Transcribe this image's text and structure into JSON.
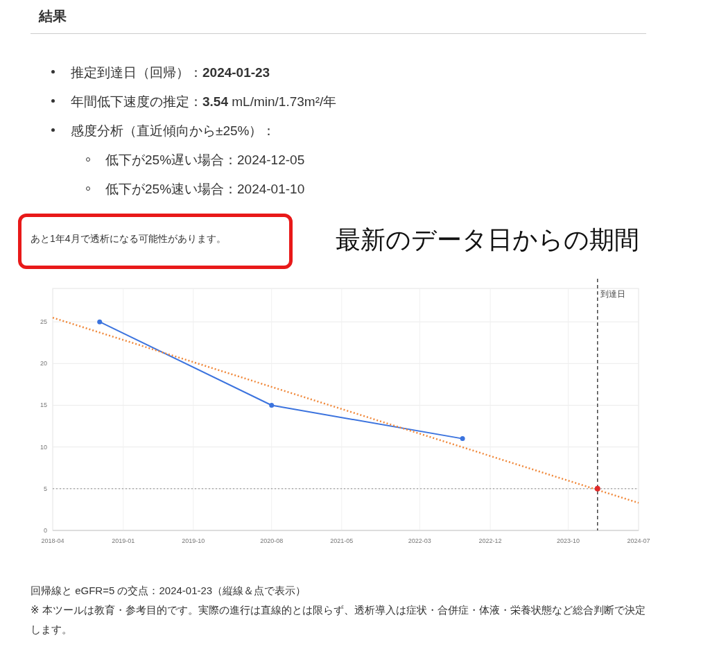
{
  "chart_data": {
    "type": "line",
    "title": "結果",
    "annotations": [
      "推定到達日（回帰）：2024-01-23",
      "年間低下速度の推定：3.54 mL/min/1.73m²/年",
      "感度分析（直近傾向から±25%）：",
      "低下が25%遅い場合：2024-12-05",
      "低下が25%速い場合：2024-01-10",
      "あと1年4月で透析になる可能性があります。",
      "最新のデータ日からの期間",
      "回帰線と eGFR=5 の交点：2024-01-23（縦線＆点で表示）",
      "※ 本ツールは教育・参考目的です。実際の進行は直線的とは限らず、透析導入は症状・合併症・体液・栄養状態など総合判断で決定します。"
    ],
    "series": [
      {
        "type": "line",
        "color": "#3b73de",
        "marker": "circle",
        "line_style": "solid",
        "x": [
          "2018-10-01",
          "2020-08-01",
          "2022-08-15"
        ],
        "values": [
          25,
          15,
          11
        ]
      },
      {
        "type": "line",
        "color": "#f0883a",
        "marker": "none",
        "line_style": "dotted",
        "x": [
          "2018-04-01",
          "2024-07-01"
        ],
        "values": [
          25.5,
          3.3
        ]
      },
      {
        "type": "scatter",
        "color": "#e02a2a",
        "marker": "circle",
        "x": [
          "2024-01-23"
        ],
        "values": [
          5
        ]
      }
    ],
    "xlim": [
      "2018-04-01",
      "2024-07-01"
    ],
    "xticks": [
      {
        "value": "2018-04-01",
        "label": "2018-04"
      },
      {
        "value": "2019-01-01",
        "label": "2019-01"
      },
      {
        "value": "2019-10-01",
        "label": "2019-10"
      },
      {
        "value": "2020-08-01",
        "label": "2020-08"
      },
      {
        "value": "2021-05-01",
        "label": "2021-05"
      },
      {
        "value": "2022-03-01",
        "label": "2022-03"
      },
      {
        "value": "2022-12-01",
        "label": "2022-12"
      },
      {
        "value": "2023-10-01",
        "label": "2023-10"
      },
      {
        "value": "2024-07-01",
        "label": "2024-07"
      }
    ],
    "ylim": [
      0,
      29
    ],
    "yticks": [
      0,
      5,
      10,
      15,
      20,
      25
    ],
    "grid": true,
    "ref_lines": [
      {
        "axis": "y",
        "value": 5,
        "color": "#888888",
        "line_style": "dotted"
      },
      {
        "axis": "x",
        "value": "2024-01-23",
        "label": "到達日",
        "color": "#444444",
        "line_style": "dashed"
      }
    ]
  }
}
